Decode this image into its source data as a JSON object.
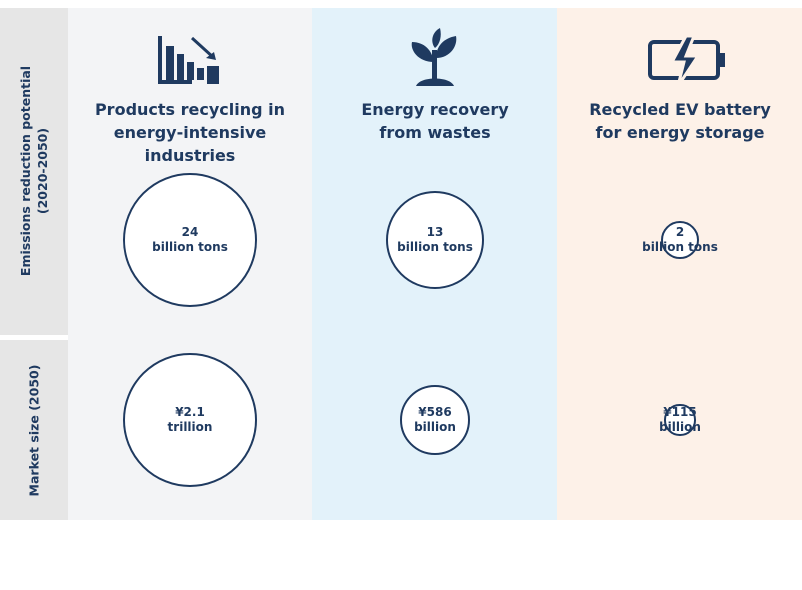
{
  "chart_data": {
    "type": "bubble",
    "categories": [
      "Products recycling in\nenergy-intensive industries",
      "Energy recovery\nfrom wastes",
      "Recycled EV battery\nfor energy storage"
    ],
    "series": [
      {
        "name": "Emissions reduction potential\n(2020-2050)",
        "values": [
          24,
          13,
          2
        ],
        "value_labels": [
          "24\nbillion tons",
          "13\nbillion tons",
          "2\nbillion tons"
        ]
      },
      {
        "name": "Market size (2050)",
        "values": [
          2100,
          586,
          115
        ],
        "value_labels": [
          "¥2.1\ntrillion",
          "¥586\nbillion",
          "¥115\nbillion"
        ]
      }
    ],
    "color": "#1f3a60"
  }
}
